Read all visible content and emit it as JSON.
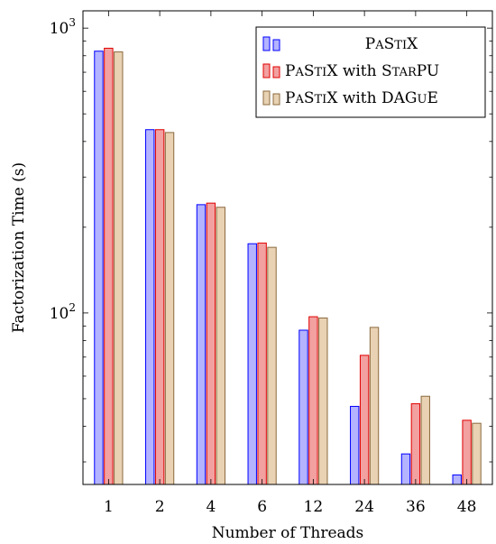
{
  "chart_data": {
    "type": "bar",
    "xlabel": "Number of Threads",
    "ylabel": "Factorization Time (s)",
    "yscale": "log",
    "ylim": [
      25,
      1150
    ],
    "y_ticks": [
      {
        "value": 100,
        "base": "10",
        "exp": "2"
      },
      {
        "value": 1000,
        "base": "10",
        "exp": "3"
      }
    ],
    "categories": [
      "1",
      "2",
      "4",
      "6",
      "12",
      "24",
      "36",
      "48"
    ],
    "series": [
      {
        "name": "PaStiX",
        "name_parts": [
          [
            "P",
            "big"
          ],
          [
            "A",
            "small"
          ],
          [
            "S",
            "big"
          ],
          [
            "TI",
            "small"
          ],
          [
            "X",
            "big"
          ]
        ],
        "color": "#0000ff",
        "fill": "#b3b3ff",
        "values": [
          830,
          440,
          240,
          175,
          87,
          47,
          32,
          27
        ]
      },
      {
        "name": "PaStiX with StarPU",
        "name_parts": [
          [
            "P",
            "big"
          ],
          [
            "A",
            "small"
          ],
          [
            "S",
            "big"
          ],
          [
            "TI",
            "small"
          ],
          [
            "X with ",
            "big"
          ],
          [
            "S",
            "big"
          ],
          [
            "TAR",
            "small"
          ],
          [
            "PU",
            "big"
          ]
        ],
        "color": "#e00000",
        "fill": "#f2a0a0",
        "values": [
          850,
          440,
          243,
          176,
          97,
          71,
          48,
          42
        ]
      },
      {
        "name": "PaStiX with DAGuE",
        "name_parts": [
          [
            "P",
            "big"
          ],
          [
            "A",
            "small"
          ],
          [
            "S",
            "big"
          ],
          [
            "TI",
            "small"
          ],
          [
            "X with DAG",
            "big"
          ],
          [
            "U",
            "small"
          ],
          [
            "E",
            "big"
          ]
        ],
        "color": "#8b6a3e",
        "fill": "#e8d2b3",
        "values": [
          825,
          430,
          235,
          170,
          96,
          89,
          51,
          41
        ]
      }
    ],
    "legend_position": "top-right",
    "grid": false
  }
}
